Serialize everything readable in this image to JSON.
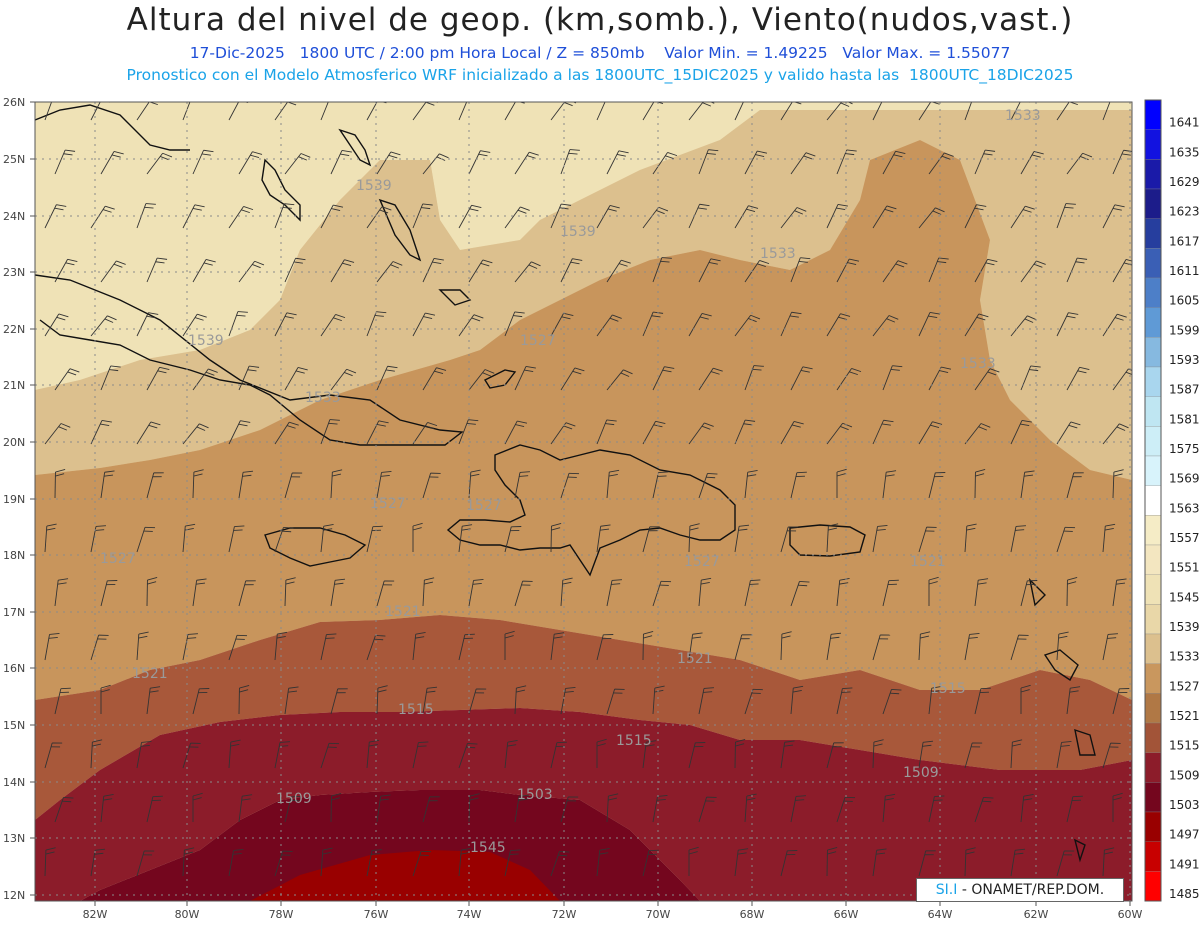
{
  "header": {
    "title": "Altura del nivel de geop. (km,somb.), Viento(nudos,vast.)",
    "date": "17-Dic-2025",
    "time": "1800 UTC / 2:00 pm Hora Local / Z = 850mb",
    "min": "Valor Min. = 1.49225",
    "max": "Valor Max. = 1.55077",
    "model_line": "Pronostico con el Modelo Atmosferico WRF inicializado a las 1800UTC_15DIC2025 y valido hasta las  1800UTC_18DIC2025"
  },
  "credit": {
    "prefix": "SI.I",
    "text": " - ONAMET/REP.DOM."
  },
  "axes": {
    "lat_labels": [
      "26N",
      "25N",
      "24N",
      "23N",
      "22N",
      "21N",
      "20N",
      "19N",
      "18N",
      "17N",
      "16N",
      "15N",
      "14N",
      "13N",
      "12N"
    ],
    "lon_labels": [
      "82W",
      "80W",
      "78W",
      "76W",
      "74W",
      "72W",
      "70W",
      "68W",
      "66W",
      "64W",
      "62W",
      "60W"
    ]
  },
  "contour_labels": [
    "1539",
    "1539",
    "1539",
    "1533",
    "1533",
    "1533",
    "1533",
    "1527",
    "1527",
    "1527",
    "1527",
    "1527",
    "1521",
    "1521",
    "1521",
    "1521",
    "1515",
    "1515",
    "1515",
    "1509",
    "1509",
    "1503",
    "1545"
  ],
  "colorbar": {
    "levels": [
      "1641",
      "1635",
      "1629",
      "1623",
      "1617",
      "1611",
      "1605",
      "1599",
      "1593",
      "1587",
      "1581",
      "1575",
      "1569",
      "1563",
      "1557",
      "1551",
      "1545",
      "1539",
      "1533",
      "1527",
      "1521",
      "1515",
      "1509",
      "1503",
      "1497",
      "1491",
      "1485"
    ],
    "colors": [
      "#0000ff",
      "#1212e0",
      "#1a1aa8",
      "#1c1c8a",
      "#263e9e",
      "#3a5fb5",
      "#4d7fc8",
      "#5f9ad6",
      "#86b9e0",
      "#a9d6ee",
      "#bfe6f2",
      "#cdeef7",
      "#d8f3fb",
      "#ffffff",
      "#f5ecc6",
      "#f3e6c0",
      "#efe2b6",
      "#e9d7a8",
      "#dcc08e",
      "#c9975e",
      "#b07845",
      "#a25438",
      "#8c1c2a",
      "#74061e",
      "#990000",
      "#c80000",
      "#ff0000"
    ]
  },
  "colors": {
    "c1545": "#efe2b6",
    "c1539": "#e8d5a8",
    "c1533": "#dcc08e",
    "c1527": "#c8955c",
    "c1521": "#a8583a",
    "c1515": "#8c1c2a",
    "c1509": "#74061e",
    "c1503": "#990000"
  }
}
